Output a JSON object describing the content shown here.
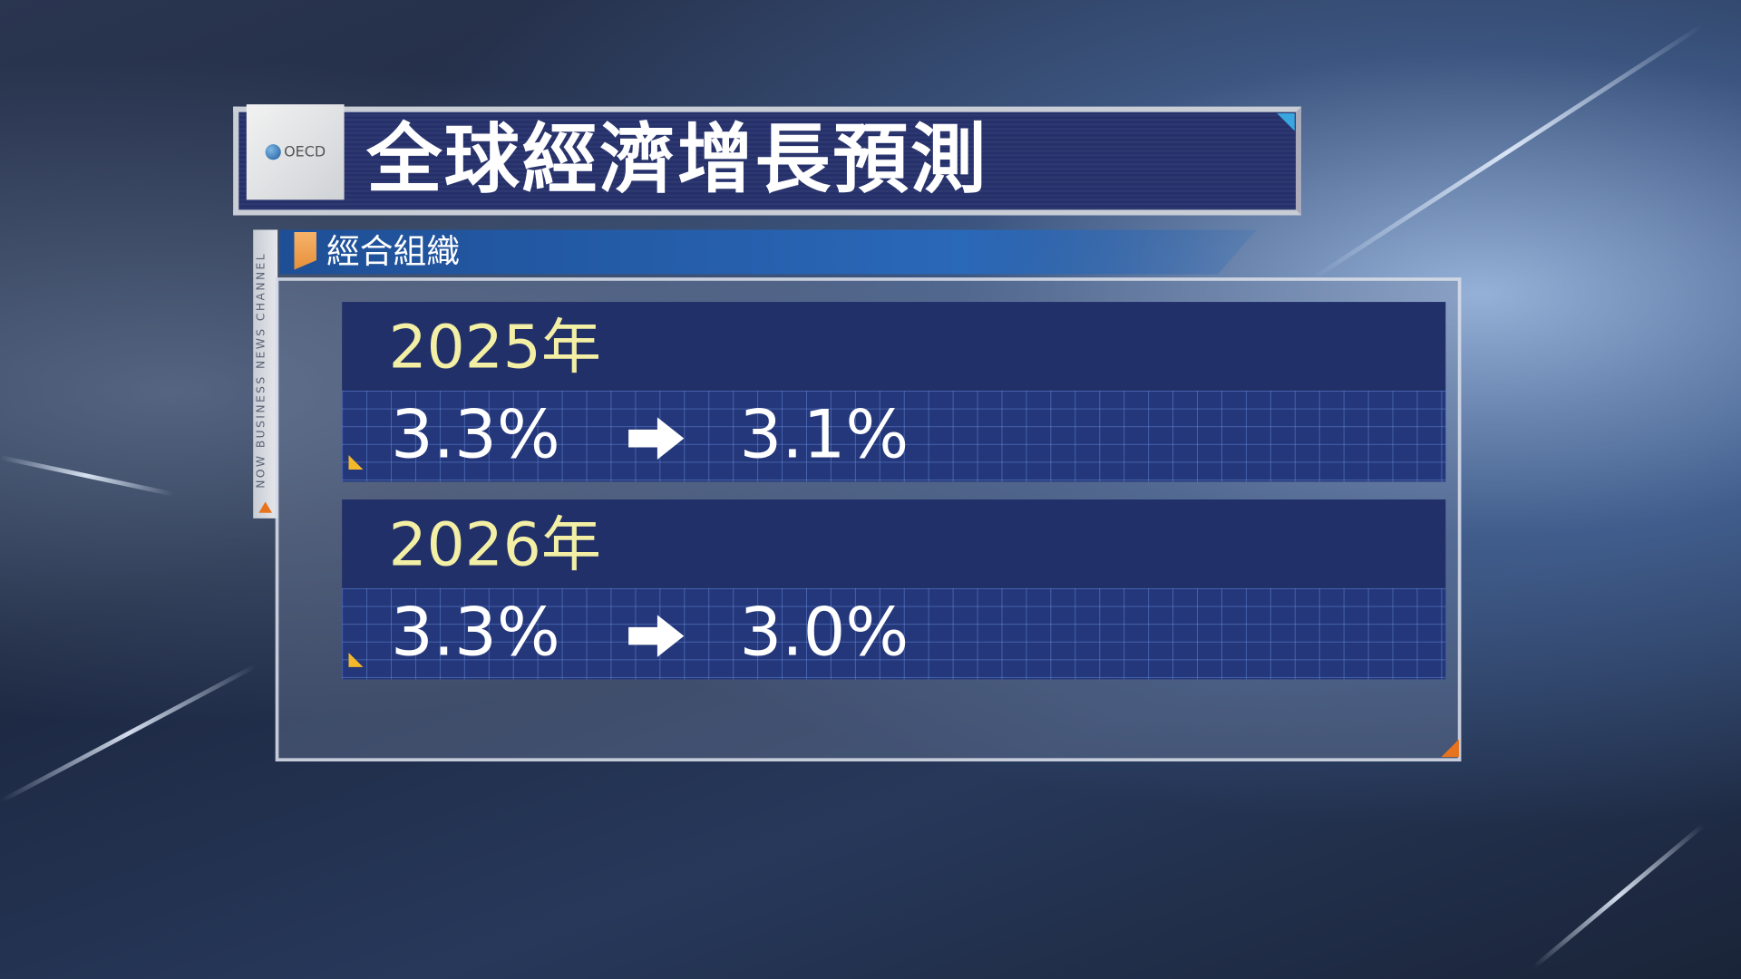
{
  "logo": {
    "text": "OECD",
    "icon": "oecd-globe-icon"
  },
  "title": "全球經濟增長預測",
  "subtitle": "經合組織",
  "channel_label": "NOW BUSINESS NEWS CHANNEL",
  "forecasts": [
    {
      "year": "2025年",
      "previous": "3.3%",
      "current": "3.1%",
      "arrow_icon": "right-arrow-icon"
    },
    {
      "year": "2026年",
      "previous": "3.3%",
      "current": "3.0%",
      "arrow_icon": "right-arrow-icon"
    }
  ],
  "colors": {
    "title_bg": "#25306a",
    "year_text": "#f3efa4",
    "accent_orange": "#e6903a",
    "accent_yellow": "#f3b92a"
  }
}
